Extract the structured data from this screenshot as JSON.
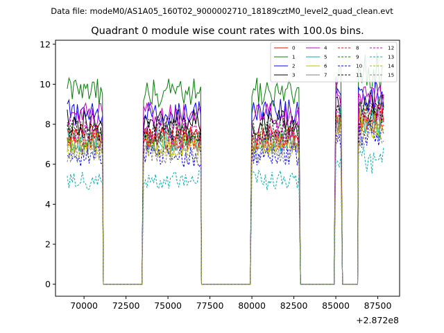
{
  "chart_data": {
    "type": "line",
    "suptitle": "Data file: modeM0/AS1A05_160T02_9000002710_18189cztM0_level2_quad_clean.evt",
    "title": "Quadrant 0 module wise count rates with 100.0s bins.",
    "xlabel": "",
    "ylabel": "",
    "x_offset_label": "+2.872e8",
    "xlim": [
      68300,
      88800
    ],
    "ylim": [
      -0.6,
      12.2
    ],
    "x_ticks": [
      70000,
      72500,
      75000,
      77500,
      80000,
      82500,
      85000,
      87500
    ],
    "x_tick_labels": [
      "70000",
      "72500",
      "75000",
      "77500",
      "80000",
      "82500",
      "85000",
      "87500"
    ],
    "y_ticks": [
      0,
      2,
      4,
      6,
      8,
      10,
      12
    ],
    "y_tick_labels": [
      "0",
      "2",
      "4",
      "6",
      "8",
      "10",
      "12"
    ],
    "legend_position": "top-right",
    "time_segments": [
      {
        "start": 69000,
        "end": 71100,
        "level": 1.0
      },
      {
        "start": 71150,
        "end": 73500,
        "level": 0.0
      },
      {
        "start": 73550,
        "end": 76950,
        "level": 1.0
      },
      {
        "start": 77000,
        "end": 79950,
        "level": 0.0
      },
      {
        "start": 80000,
        "end": 82850,
        "level": 1.0
      },
      {
        "start": 82900,
        "end": 84950,
        "level": 0.0
      },
      {
        "start": 85000,
        "end": 85350,
        "level": 1.0
      },
      {
        "start": 85400,
        "end": 86300,
        "level": 0.0
      },
      {
        "start": 86350,
        "end": 87850,
        "level": 1.0
      }
    ],
    "series": [
      {
        "name": "0",
        "color": "#ff0000",
        "dash": "solid",
        "mean_rate": 7.4
      },
      {
        "name": "1",
        "color": "#008000",
        "dash": "solid",
        "mean_rate": 9.6
      },
      {
        "name": "2",
        "color": "#0000ff",
        "dash": "solid",
        "mean_rate": 8.6
      },
      {
        "name": "3",
        "color": "#000000",
        "dash": "solid",
        "mean_rate": 8.1
      },
      {
        "name": "4",
        "color": "#c000c0",
        "dash": "solid",
        "mean_rate": 8.4
      },
      {
        "name": "5",
        "color": "#00b0a0",
        "dash": "solid",
        "mean_rate": 7.2
      },
      {
        "name": "6",
        "color": "#c0c000",
        "dash": "solid",
        "mean_rate": 7.0
      },
      {
        "name": "7",
        "color": "#808080",
        "dash": "solid",
        "mean_rate": 7.1
      },
      {
        "name": "8",
        "color": "#ff0000",
        "dash": "dashed",
        "mean_rate": 7.3
      },
      {
        "name": "9",
        "color": "#008000",
        "dash": "dashed",
        "mean_rate": 7.5
      },
      {
        "name": "10",
        "color": "#0000ff",
        "dash": "dashed",
        "mean_rate": 6.4
      },
      {
        "name": "11",
        "color": "#000000",
        "dash": "dashed",
        "mean_rate": 7.7
      },
      {
        "name": "12",
        "color": "#c000c0",
        "dash": "dashed",
        "mean_rate": 7.6
      },
      {
        "name": "13",
        "color": "#00b0b0",
        "dash": "dashed",
        "mean_rate": 5.2
      },
      {
        "name": "14",
        "color": "#b0b000",
        "dash": "dashed",
        "mean_rate": 6.8
      },
      {
        "name": "15",
        "color": "#808080",
        "dash": "dashed",
        "mean_rate": 6.6
      }
    ]
  }
}
